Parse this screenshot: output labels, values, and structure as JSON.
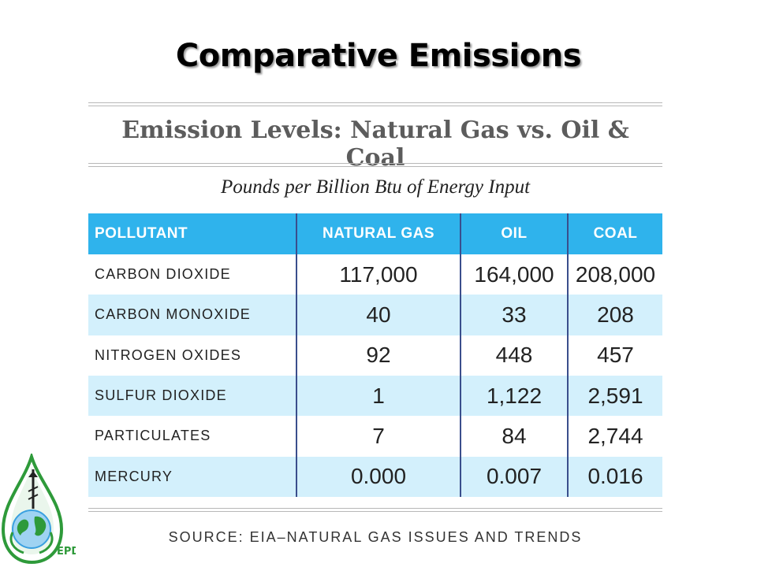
{
  "slide": {
    "title": "Comparative Emissions",
    "subtitle": "Emission Levels: Natural Gas vs. Oil & Coal",
    "units": "Pounds per Billion Btu of Energy Input",
    "source": "SOURCE: EIA–NATURAL GAS ISSUES AND TRENDS",
    "logo_text": "EPD"
  },
  "colors": {
    "header_bg": "#2fb3ec",
    "alt_row_bg": "#d3f0fc",
    "column_divider": "#3a4e8c",
    "logo_green": "#2e9a3a",
    "logo_blue": "#3aa0e0"
  },
  "chart_data": {
    "type": "table",
    "columns": [
      "POLLUTANT",
      "NATURAL GAS",
      "OIL",
      "COAL"
    ],
    "rows": [
      [
        "CARBON DIOXIDE",
        "117,000",
        "164,000",
        "208,000"
      ],
      [
        "CARBON MONOXIDE",
        "40",
        "33",
        "208"
      ],
      [
        "NITROGEN OXIDES",
        "92",
        "448",
        "457"
      ],
      [
        "SULFUR DIOXIDE",
        "1",
        "1,122",
        "2,591"
      ],
      [
        "PARTICULATES",
        "7",
        "84",
        "2,744"
      ],
      [
        "MERCURY",
        "0.000",
        "0.007",
        "0.016"
      ]
    ]
  }
}
